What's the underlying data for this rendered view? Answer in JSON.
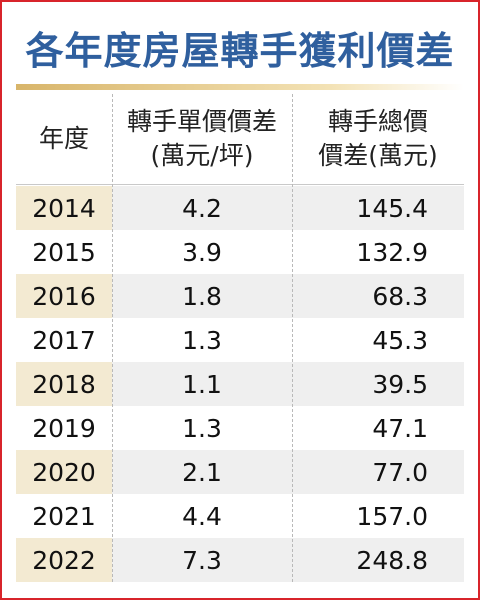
{
  "title": "各年度房屋轉手獲利價差",
  "headers": {
    "year": "年度",
    "unit_price_line1": "轉手單價價差",
    "unit_price_line2": "(萬元/坪)",
    "total_price_line1": "轉手總價",
    "total_price_line2": "價差(萬元)"
  },
  "colors": {
    "title": "#2f5f9e",
    "border": "#d8242b",
    "year_shade": "#f3ead2",
    "row_shade": "#efefef"
  },
  "rows": [
    {
      "year": "2014",
      "unit": "4.2",
      "total": "145.4"
    },
    {
      "year": "2015",
      "unit": "3.9",
      "total": "132.9"
    },
    {
      "year": "2016",
      "unit": "1.8",
      "total": "68.3"
    },
    {
      "year": "2017",
      "unit": "1.3",
      "total": "45.3"
    },
    {
      "year": "2018",
      "unit": "1.1",
      "total": "39.5"
    },
    {
      "year": "2019",
      "unit": "1.3",
      "total": "47.1"
    },
    {
      "year": "2020",
      "unit": "2.1",
      "total": "77.0"
    },
    {
      "year": "2021",
      "unit": "4.4",
      "total": "157.0"
    },
    {
      "year": "2022",
      "unit": "7.3",
      "total": "248.8"
    }
  ],
  "chart_data": {
    "type": "table",
    "title": "各年度房屋轉手獲利價差",
    "columns": [
      "年度",
      "轉手單價價差(萬元/坪)",
      "轉手總價價差(萬元)"
    ],
    "categories": [
      "2014",
      "2015",
      "2016",
      "2017",
      "2018",
      "2019",
      "2020",
      "2021",
      "2022"
    ],
    "series": [
      {
        "name": "轉手單價價差(萬元/坪)",
        "values": [
          4.2,
          3.9,
          1.8,
          1.3,
          1.1,
          1.3,
          2.1,
          4.4,
          7.3
        ]
      },
      {
        "name": "轉手總價價差(萬元)",
        "values": [
          145.4,
          132.9,
          68.3,
          45.3,
          39.5,
          47.1,
          77.0,
          157.0,
          248.8
        ]
      }
    ]
  }
}
